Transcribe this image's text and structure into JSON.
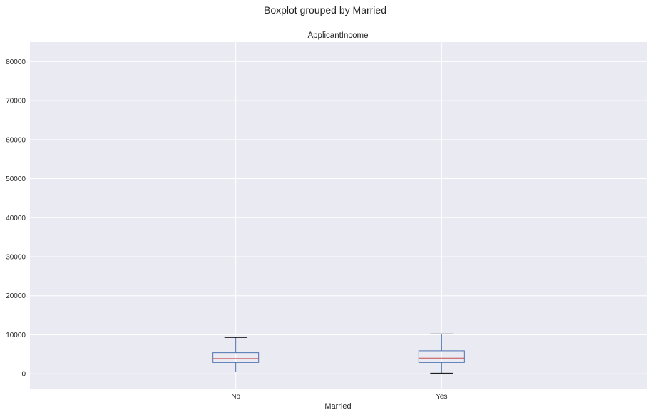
{
  "chart_data": {
    "type": "boxplot",
    "suptitle": "Boxplot grouped by Married",
    "title": "ApplicantIncome",
    "xlabel": "Married",
    "ylabel": "",
    "categories": [
      "No",
      "Yes"
    ],
    "boxes": [
      {
        "category": "No",
        "whisker_low": 500,
        "q1": 2900,
        "median": 3900,
        "q3": 5400,
        "whisker_high": 9300
      },
      {
        "category": "Yes",
        "whisker_low": 150,
        "q1": 2900,
        "median": 4000,
        "q3": 5900,
        "whisker_high": 10200
      }
    ],
    "yticks": [
      0,
      10000,
      20000,
      30000,
      40000,
      50000,
      60000,
      70000,
      80000
    ],
    "ylim": [
      -3800,
      85000
    ],
    "grid": true,
    "colors": {
      "background": "#eaeaf2",
      "grid": "#ffffff",
      "box": "#4c72b0",
      "median": "#c44e52",
      "cap": "#000000"
    }
  }
}
